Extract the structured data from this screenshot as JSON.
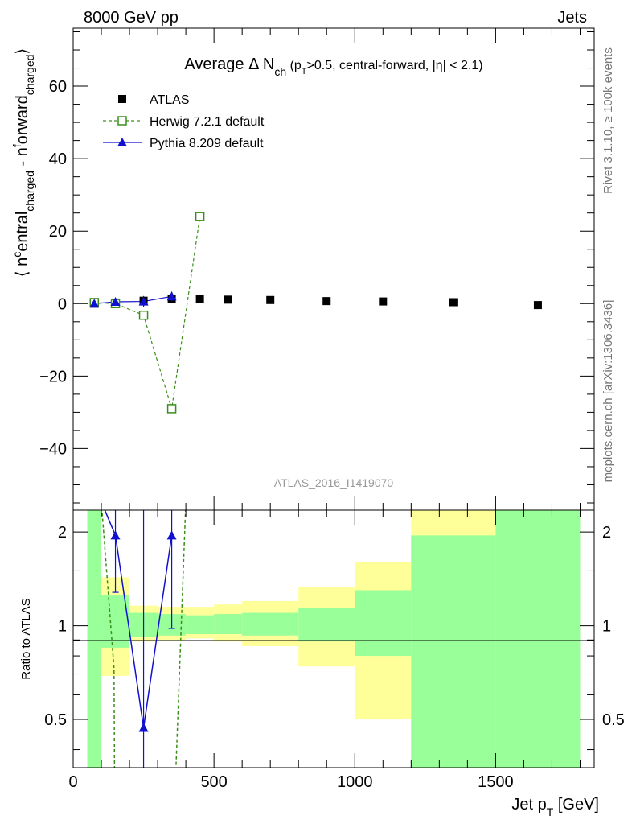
{
  "header": {
    "energy_label": "8000 GeV pp",
    "category_label": "Jets"
  },
  "side_labels": {
    "rivet": "Rivet 3.1.10, ≥ 100k events",
    "source": "mcplots.cern.ch [arXiv:1306.3436]"
  },
  "analysis_id": "ATLAS_2016_I1419070",
  "chart_data": [
    {
      "type": "scatter",
      "panel": "main",
      "title_main": "Average Δ N",
      "title_sub": "ch",
      "title_cuts": " (p",
      "title_cuts_sub": "T",
      "title_cuts_rest": ">0.5, central-forward, |η| < 2.1)",
      "ylabel": "⟨ n",
      "ylabel_full": "⟨ ncentral charged - nforward charged ⟩",
      "ylim": [
        -57,
        76
      ],
      "xlim": [
        0,
        1850
      ],
      "yticks": [
        -40,
        -20,
        0,
        20,
        40,
        60
      ],
      "ytick_labels": [
        "−40",
        "−20",
        "0",
        "20",
        "40",
        "60"
      ],
      "legend_position": "top-left",
      "series": [
        {
          "name": "ATLAS",
          "marker": "filled-square",
          "color": "#000000",
          "x": [
            75,
            150,
            250,
            350,
            450,
            550,
            700,
            900,
            1100,
            1350,
            1650
          ],
          "y": [
            0.0,
            0.3,
            0.8,
            1.2,
            1.2,
            1.1,
            1.0,
            0.7,
            0.6,
            0.4,
            -0.4
          ]
        },
        {
          "name": "Herwig 7.2.1 default",
          "marker": "open-square",
          "line": "dashed",
          "color": "#3a8f1a",
          "x": [
            75,
            150,
            250,
            350,
            450
          ],
          "y": [
            0.3,
            0.0,
            -3.2,
            -29.0,
            24.0
          ]
        },
        {
          "name": "Pythia 8.209 default",
          "marker": "filled-triangle",
          "line": "solid",
          "color": "#1010d0",
          "x": [
            75,
            150,
            250,
            350
          ],
          "y": [
            0.0,
            0.5,
            0.6,
            2.0
          ],
          "yerr": [
            0.3,
            0.6,
            1.5,
            1.3
          ]
        }
      ]
    },
    {
      "type": "line",
      "panel": "ratio",
      "ylabel": "Ratio to ATLAS",
      "xlabel": "Jet p",
      "xlabel_sub": "T",
      "xlabel_unit": " [GeV]",
      "ylim": [
        0.35,
        2.35
      ],
      "xlim": [
        0,
        1850
      ],
      "xticks": [
        0,
        500,
        1000,
        1500
      ],
      "xtick_labels": [
        "0",
        "500",
        "1000",
        "1500"
      ],
      "yticks": [
        0.5,
        1,
        2
      ],
      "ytick_labels": [
        "0.5",
        "1",
        "2"
      ],
      "uncertainty_bands": [
        {
          "x0": 50,
          "x1": 100,
          "green": [
            0.0,
            3.0
          ],
          "yellow": [
            0.0,
            3.0
          ]
        },
        {
          "x0": 100,
          "x1": 200,
          "green": [
            0.85,
            1.25
          ],
          "yellow": [
            0.69,
            1.43
          ]
        },
        {
          "x0": 200,
          "x1": 300,
          "green": [
            0.92,
            1.1
          ],
          "yellow": [
            0.89,
            1.16
          ]
        },
        {
          "x0": 300,
          "x1": 400,
          "green": [
            0.93,
            1.09
          ],
          "yellow": [
            0.9,
            1.15
          ]
        },
        {
          "x0": 400,
          "x1": 500,
          "green": [
            0.94,
            1.08
          ],
          "yellow": [
            0.91,
            1.15
          ]
        },
        {
          "x0": 500,
          "x1": 600,
          "green": [
            0.94,
            1.09
          ],
          "yellow": [
            0.89,
            1.17
          ]
        },
        {
          "x0": 600,
          "x1": 800,
          "green": [
            0.93,
            1.1
          ],
          "yellow": [
            0.86,
            1.2
          ]
        },
        {
          "x0": 800,
          "x1": 1000,
          "green": [
            0.89,
            1.14
          ],
          "yellow": [
            0.74,
            1.33
          ]
        },
        {
          "x0": 1000,
          "x1": 1200,
          "green": [
            0.8,
            1.3
          ],
          "yellow": [
            0.5,
            1.6
          ]
        },
        {
          "x0": 1200,
          "x1": 1500,
          "green": [
            0.0,
            1.95
          ],
          "yellow": [
            0.0,
            3.0
          ]
        },
        {
          "x0": 1500,
          "x1": 1800,
          "green": [
            0.0,
            3.0
          ],
          "yellow": [
            0.0,
            3.0
          ]
        }
      ],
      "series": [
        {
          "name": "Herwig 7.2.1 default",
          "line": "dashed",
          "color": "#3a8f1a",
          "x": [
            100,
            145,
            148,
            355,
            400
          ],
          "y": [
            2.5,
            0.73,
            0.2,
            0.2,
            2.5
          ]
        },
        {
          "name": "Pythia 8.209 default",
          "marker": "filled-triangle",
          "line": "solid",
          "color": "#1010d0",
          "x": [
            100,
            150,
            250,
            350
          ],
          "y": [
            2.5,
            1.95,
            0.47,
            1.95
          ],
          "yerr_lo": [
            0,
            0.67,
            0.2,
            0.97
          ],
          "yerr_hi": [
            0,
            1.0,
            1.9,
            1.0
          ]
        }
      ]
    }
  ]
}
